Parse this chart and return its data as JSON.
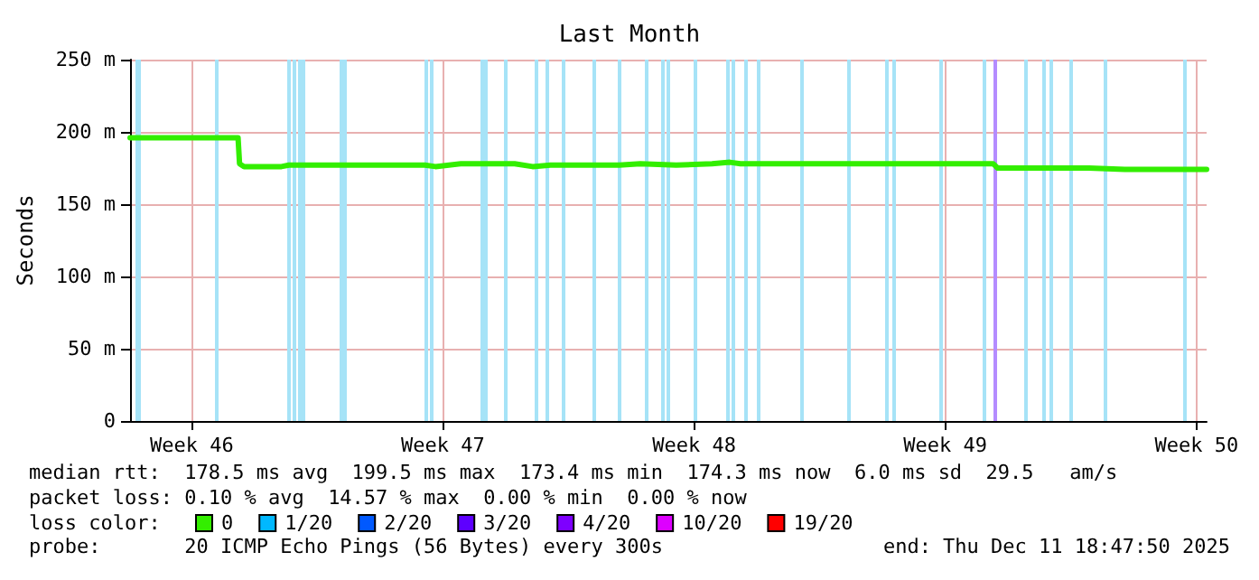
{
  "chart_data": {
    "type": "line",
    "title": "Last Month",
    "ylabel": "Seconds",
    "legend_title": "loss color:",
    "x": [
      "2025-11-11T18:47",
      "2025-11-14T19:00",
      "2025-11-14T20:00",
      "2025-11-14T23:00",
      "2025-11-16T00:00",
      "2025-11-16T05:00",
      "2025-11-18T00:00",
      "2025-11-18T12:00",
      "2025-11-20T00:00",
      "2025-11-20T07:00",
      "2025-11-21T00:00",
      "2025-11-22T12:00",
      "2025-11-23T00:00",
      "2025-11-23T12:00",
      "2025-11-25T10:00",
      "2025-11-26T00:00",
      "2025-11-27T00:00",
      "2025-11-28T00:00",
      "2025-11-28T12:00",
      "2025-11-28T19:00",
      "2025-12-01T12:00",
      "2025-12-05T20:00",
      "2025-12-05T23:00",
      "2025-12-08T12:00",
      "2025-12-09T12:00",
      "2025-12-11T18:47"
    ],
    "xlim": [
      "2025-11-11T18:47",
      "2025-12-11T18:47"
    ],
    "xticks": [
      {
        "value": "2025-11-13T12:00",
        "label": "Week 46"
      },
      {
        "value": "2025-11-20T12:00",
        "label": "Week 47"
      },
      {
        "value": "2025-11-27T12:00",
        "label": "Week 48"
      },
      {
        "value": "2025-12-04T12:00",
        "label": "Week 49"
      },
      {
        "value": "2025-12-11T12:00",
        "label": "Week 50"
      }
    ],
    "ylim": [
      0,
      250
    ],
    "yticks": [
      0,
      {
        "value": 50,
        "label": "50 m"
      },
      {
        "value": 100,
        "label": "100 m"
      },
      {
        "value": 150,
        "label": "150 m"
      },
      {
        "value": 200,
        "label": "200 m"
      },
      {
        "value": 250,
        "label": "250 m"
      }
    ],
    "series": [
      {
        "name": "0",
        "color": "#33ee00",
        "values": [
          196,
          196,
          178,
          176,
          176,
          177,
          177,
          177,
          177,
          176,
          178,
          178,
          176,
          177,
          177,
          178,
          177,
          178,
          179,
          178,
          178,
          178,
          175,
          175,
          174,
          174
        ]
      },
      {
        "name": "1/20",
        "color": "#00b8ff",
        "values": [
          null,
          null,
          null,
          null,
          null,
          null,
          null,
          null,
          null,
          null,
          null,
          null,
          null,
          null,
          null,
          null,
          null,
          null,
          null,
          null,
          null,
          null,
          null,
          null,
          null,
          null
        ]
      },
      {
        "name": "2/20",
        "color": "#0059ff",
        "values": [
          null,
          null,
          null,
          null,
          null,
          null,
          null,
          null,
          null,
          null,
          null,
          null,
          null,
          null,
          null,
          null,
          null,
          null,
          null,
          null,
          null,
          null,
          null,
          null,
          null,
          null
        ]
      },
      {
        "name": "3/20",
        "color": "#5e00ff",
        "values": [
          null,
          null,
          null,
          null,
          null,
          null,
          null,
          null,
          null,
          null,
          null,
          null,
          null,
          null,
          null,
          null,
          null,
          null,
          null,
          null,
          null,
          null,
          null,
          null,
          null,
          null
        ]
      },
      {
        "name": "4/20",
        "color": "#7e00ff",
        "values": [
          null,
          null,
          null,
          null,
          null,
          null,
          null,
          null,
          null,
          null,
          null,
          null,
          null,
          null,
          null,
          null,
          null,
          null,
          null,
          null,
          null,
          null,
          null,
          null,
          null,
          null
        ]
      },
      {
        "name": "10/20",
        "color": "#dd00ff",
        "values": [
          null,
          null,
          null,
          null,
          null,
          null,
          null,
          null,
          null,
          null,
          null,
          null,
          null,
          null,
          null,
          null,
          null,
          null,
          null,
          null,
          null,
          null,
          null,
          null,
          null,
          null
        ]
      },
      {
        "name": "19/20",
        "color": "#ff0000",
        "values": [
          null,
          null,
          null,
          null,
          null,
          null,
          null,
          null,
          null,
          null,
          null,
          null,
          null,
          null,
          null,
          null,
          null,
          null,
          null,
          null,
          null,
          null,
          null,
          null,
          null,
          null
        ]
      }
    ],
    "ref_lines": [
      {
        "axis": "x",
        "value": "2025-11-11T23:00",
        "color": "#a6e3f7"
      },
      {
        "axis": "x",
        "value": "2025-11-12T01:00",
        "color": "#a6e3f7"
      },
      {
        "axis": "x",
        "value": "2025-11-14T04:00",
        "color": "#a6e3f7"
      },
      {
        "axis": "x",
        "value": "2025-11-16T05:00",
        "color": "#a6e3f7"
      },
      {
        "axis": "x",
        "value": "2025-11-16T09:00",
        "color": "#a6e3f7"
      },
      {
        "axis": "x",
        "value": "2025-11-16T12:00",
        "color": "#a6e3f7"
      },
      {
        "axis": "x",
        "value": "2025-11-16T15:00",
        "color": "#a6e3f7"
      },
      {
        "axis": "x",
        "value": "2025-11-17T16:00",
        "color": "#a6e3f7"
      },
      {
        "axis": "x",
        "value": "2025-11-17T18:00",
        "color": "#a6e3f7"
      },
      {
        "axis": "x",
        "value": "2025-11-20T00:00",
        "color": "#a6e3f7"
      },
      {
        "axis": "x",
        "value": "2025-11-20T04:00",
        "color": "#a6e3f7"
      },
      {
        "axis": "x",
        "value": "2025-11-21T14:00",
        "color": "#a6e3f7"
      },
      {
        "axis": "x",
        "value": "2025-11-21T17:00",
        "color": "#a6e3f7"
      },
      {
        "axis": "x",
        "value": "2025-11-22T06:00",
        "color": "#a6e3f7"
      },
      {
        "axis": "x",
        "value": "2025-11-23T02:00",
        "color": "#a6e3f7"
      },
      {
        "axis": "x",
        "value": "2025-11-23T09:00",
        "color": "#a6e3f7"
      },
      {
        "axis": "x",
        "value": "2025-11-23T20:00",
        "color": "#a6e3f7"
      },
      {
        "axis": "x",
        "value": "2025-11-24T17:00",
        "color": "#a6e3f7"
      },
      {
        "axis": "x",
        "value": "2025-11-25T10:00",
        "color": "#a6e3f7"
      },
      {
        "axis": "x",
        "value": "2025-11-26T04:00",
        "color": "#a6e3f7"
      },
      {
        "axis": "x",
        "value": "2025-11-26T15:00",
        "color": "#a6e3f7"
      },
      {
        "axis": "x",
        "value": "2025-11-26T18:00",
        "color": "#a6e3f7"
      },
      {
        "axis": "x",
        "value": "2025-11-27T12:00",
        "color": "#a6e3f7"
      },
      {
        "axis": "x",
        "value": "2025-11-28T10:00",
        "color": "#a6e3f7"
      },
      {
        "axis": "x",
        "value": "2025-11-28T14:00",
        "color": "#a6e3f7"
      },
      {
        "axis": "x",
        "value": "2025-11-28T23:00",
        "color": "#a6e3f7"
      },
      {
        "axis": "x",
        "value": "2025-11-29T07:00",
        "color": "#a6e3f7"
      },
      {
        "axis": "x",
        "value": "2025-11-30T12:00",
        "color": "#a6e3f7"
      },
      {
        "axis": "x",
        "value": "2025-12-01T19:00",
        "color": "#a6e3f7"
      },
      {
        "axis": "x",
        "value": "2025-12-02T21:00",
        "color": "#a6e3f7"
      },
      {
        "axis": "x",
        "value": "2025-12-03T01:00",
        "color": "#a6e3f7"
      },
      {
        "axis": "x",
        "value": "2025-12-04T09:00",
        "color": "#a6e3f7"
      },
      {
        "axis": "x",
        "value": "2025-12-05T14:00",
        "color": "#a6e3f7"
      },
      {
        "axis": "x",
        "value": "2025-12-05T21:00",
        "color": "#b48cff"
      },
      {
        "axis": "x",
        "value": "2025-12-06T18:00",
        "color": "#a6e3f7"
      },
      {
        "axis": "x",
        "value": "2025-12-07T06:00",
        "color": "#a6e3f7"
      },
      {
        "axis": "x",
        "value": "2025-12-07T10:00",
        "color": "#a6e3f7"
      },
      {
        "axis": "x",
        "value": "2025-12-08T00:00",
        "color": "#a6e3f7"
      },
      {
        "axis": "x",
        "value": "2025-12-08T23:00",
        "color": "#a6e3f7"
      },
      {
        "axis": "x",
        "value": "2025-12-11T04:00",
        "color": "#a6e3f7"
      }
    ],
    "annotations": [
      "median rtt:  178.5 ms avg  199.5 ms max  173.4 ms min  174.3 ms now  6.0 ms sd  29.5   am/s",
      "packet loss: 0.10 % avg  14.57 % max  0.00 % min  0.00 % now",
      "probe:       20 ICMP Echo Pings (56 Bytes) every 300s",
      "end: Thu Dec 11 18:47:50 2025"
    ],
    "grid": true,
    "legend": "bottom left",
    "marker": "none",
    "line_style": "solid"
  }
}
